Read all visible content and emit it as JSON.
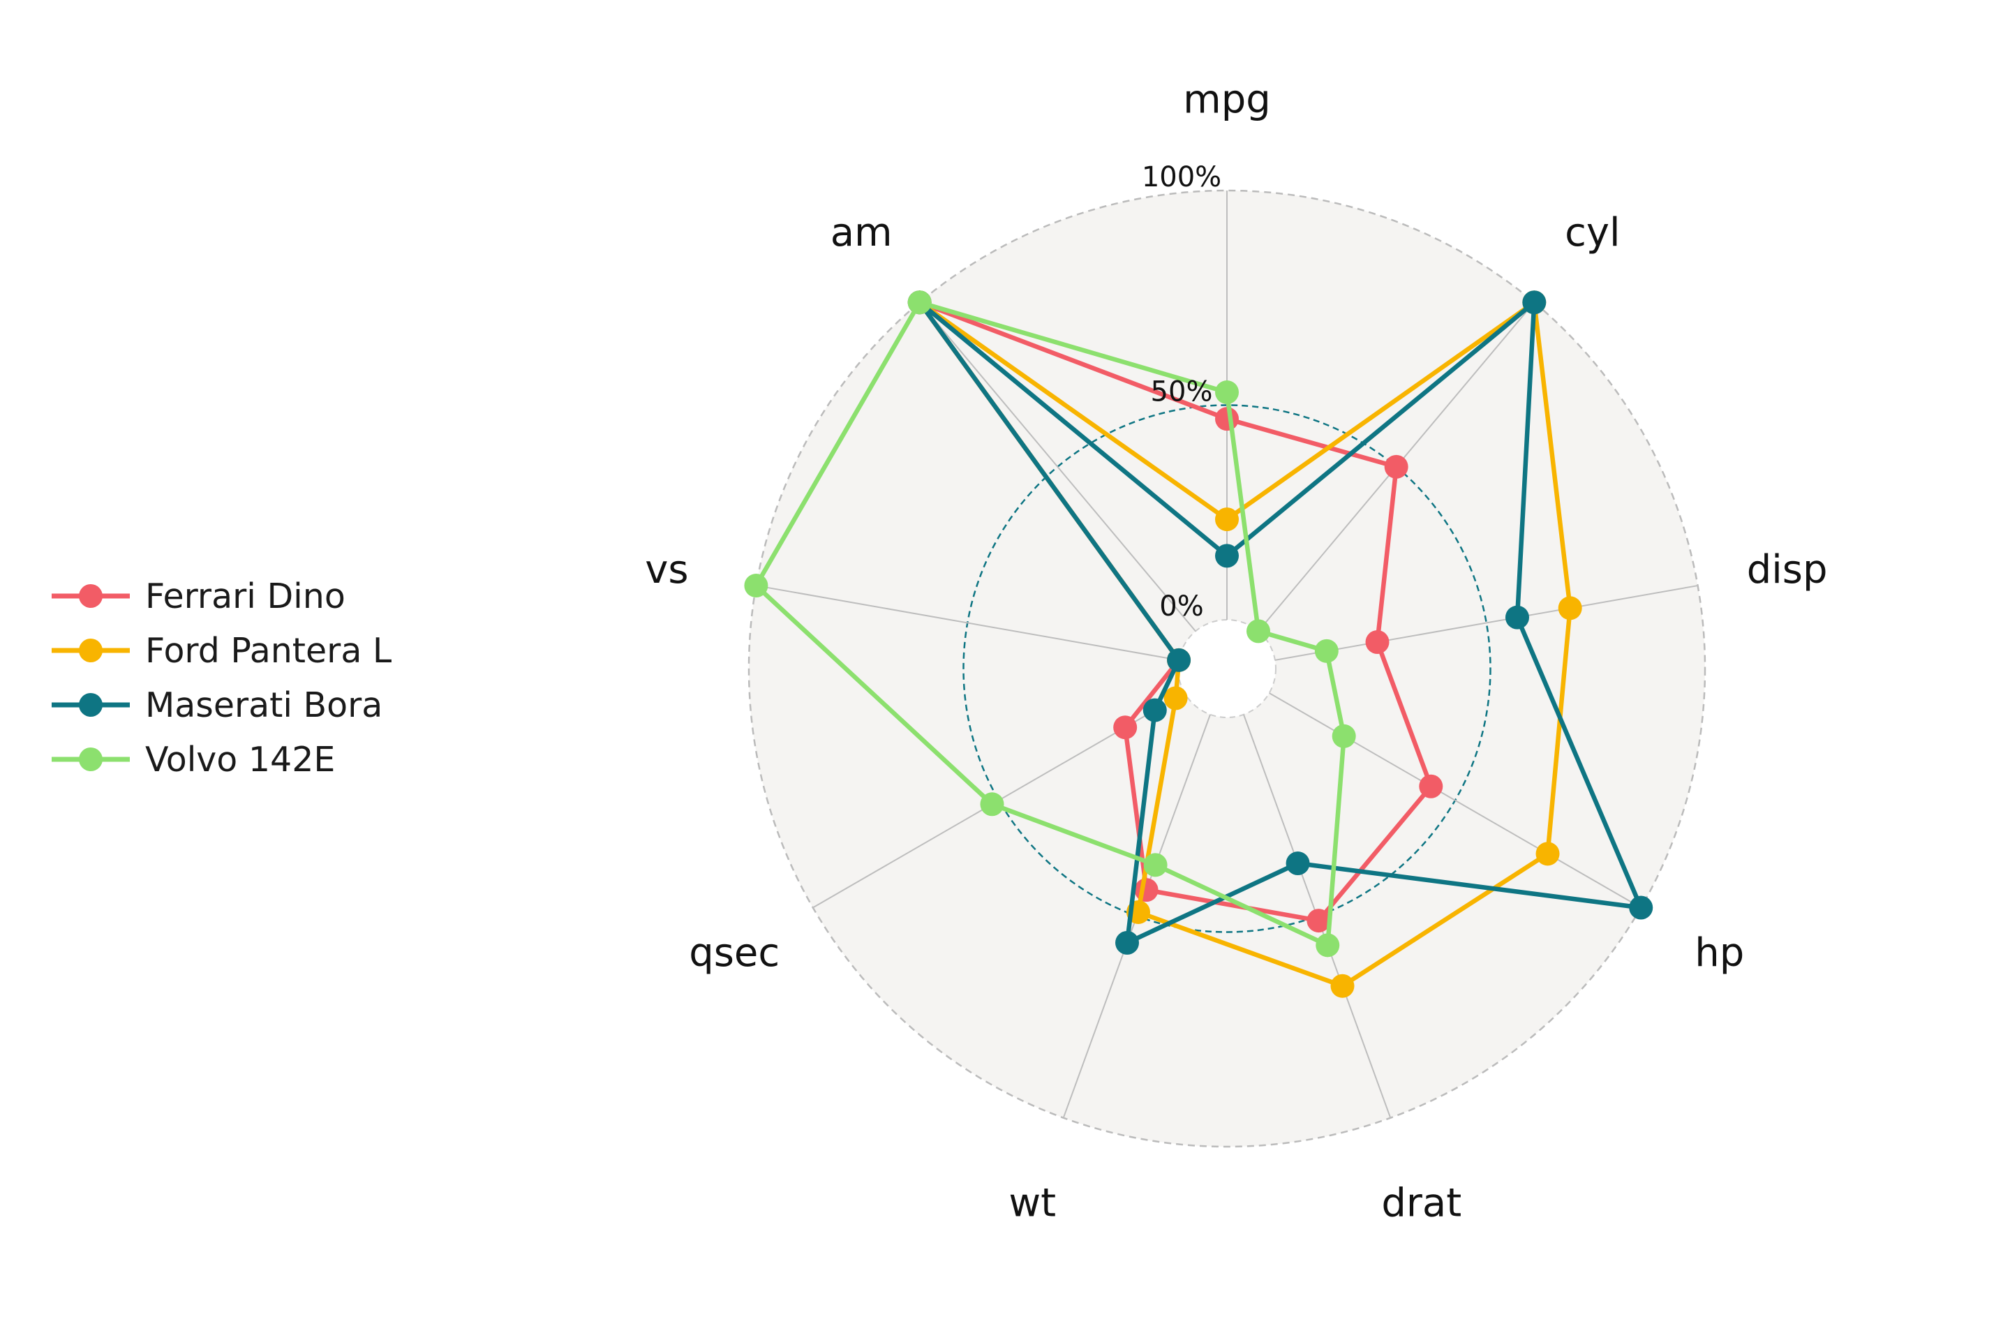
{
  "chart_data": {
    "type": "radar",
    "title": "",
    "axes": [
      "mpg",
      "cyl",
      "disp",
      "hp",
      "drat",
      "wt",
      "qsec",
      "vs",
      "am"
    ],
    "radial_tick_labels": [
      "0%",
      "50%",
      "100%"
    ],
    "radial_range": [
      0,
      100
    ],
    "reference_circle": 50,
    "grid": true,
    "legend_position": "left",
    "series": [
      {
        "name": "Ferrari Dino",
        "color": "#F25C66",
        "values": [
          46.8,
          50.0,
          24.2,
          43.5,
          51.1,
          43.5,
          16.0,
          0,
          100
        ]
      },
      {
        "name": "Ford Pantera L",
        "color": "#F8B400",
        "values": [
          23.4,
          100,
          69.8,
          74.9,
          67.3,
          49.0,
          2.4,
          0,
          100
        ]
      },
      {
        "name": "Maserati Bora",
        "color": "#0E7583",
        "values": [
          14.9,
          100,
          57.3,
          100,
          36.9,
          56.6,
          8.0,
          0,
          100
        ]
      },
      {
        "name": "Volvo 142E",
        "color": "#8CE06E",
        "values": [
          53.0,
          0,
          12.2,
          20.1,
          57.2,
          37.3,
          51.8,
          100,
          100
        ]
      }
    ]
  },
  "legend": {
    "items": [
      {
        "label": "Ferrari Dino",
        "color": "#F25C66"
      },
      {
        "label": "Ford Pantera L",
        "color": "#F8B400"
      },
      {
        "label": "Maserati Bora",
        "color": "#0E7583"
      },
      {
        "label": "Volvo 142E",
        "color": "#8CE06E"
      }
    ]
  }
}
